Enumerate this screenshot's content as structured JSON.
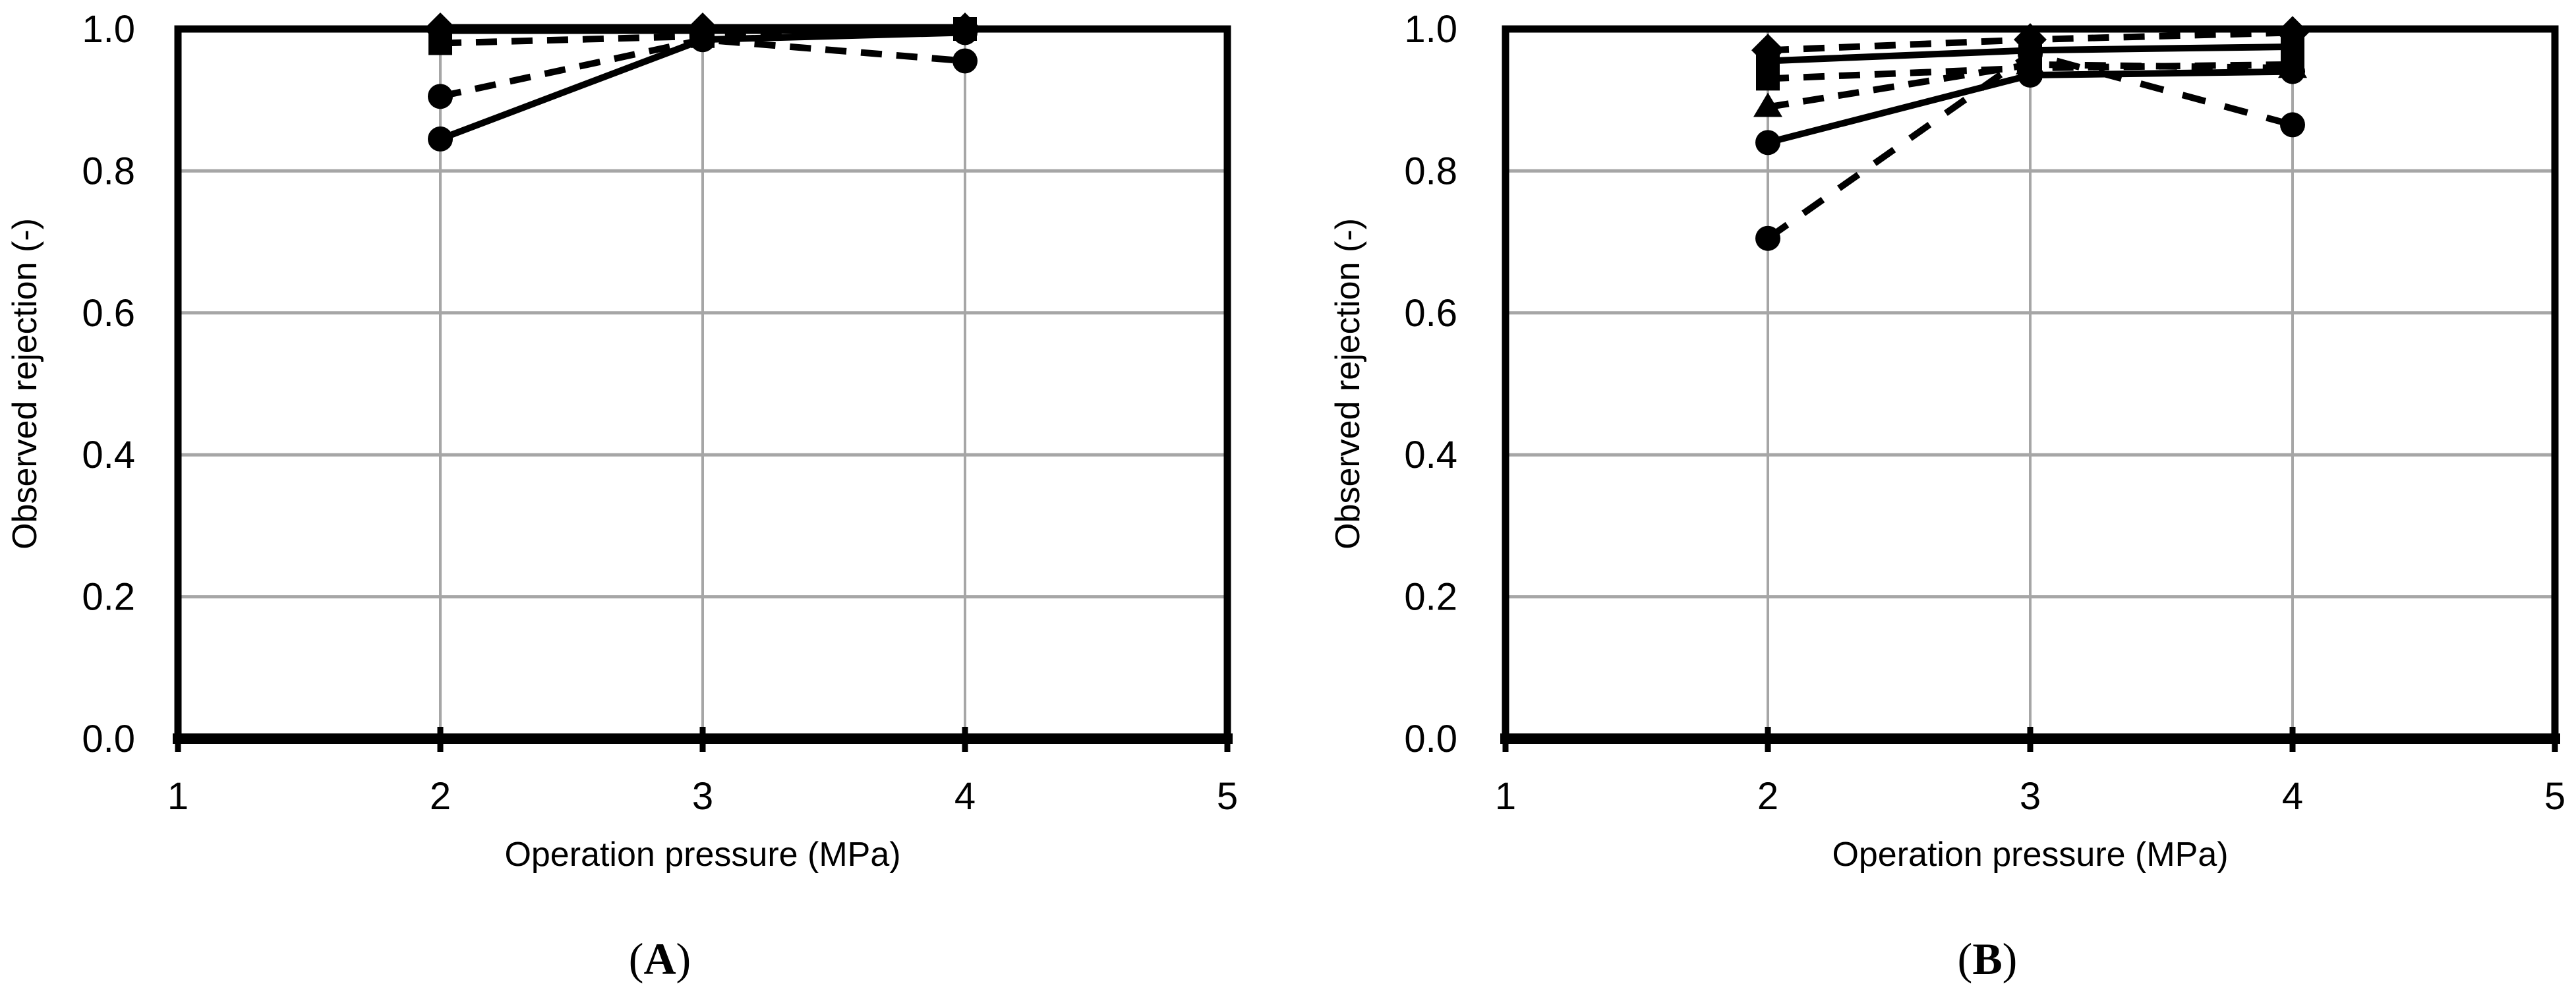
{
  "figure": {
    "title": "Observed rejection vs operation pressure (two panels)",
    "background": "#ffffff",
    "axis_color": "#000000",
    "grid_color": "#a6a6a6",
    "series_color": "#000000"
  },
  "chart_data": [
    {
      "type": "line",
      "panel": "A",
      "caption": "(A)",
      "xlabel": "Operation pressure (MPa)",
      "ylabel": "Observed rejection (-)",
      "x": [
        2,
        3,
        4
      ],
      "xlim": [
        1,
        5
      ],
      "ylim": [
        0.0,
        1.0
      ],
      "xticks": [
        1,
        2,
        3,
        4,
        5
      ],
      "yticks": [
        "0.0",
        "0.2",
        "0.4",
        "0.6",
        "0.8",
        "1.0"
      ],
      "grid": true,
      "legend": "none",
      "series": [
        {
          "name": "diamond-solid",
          "marker": "diamond",
          "line": "solid",
          "thick": true,
          "values": [
            1.0,
            1.0,
            1.0
          ]
        },
        {
          "name": "square-dashed",
          "marker": "square",
          "line": "dashed",
          "thick": false,
          "values": [
            0.98,
            0.99,
            1.0
          ]
        },
        {
          "name": "circle-dashed",
          "marker": "circle",
          "line": "dashed",
          "thick": false,
          "values": [
            0.905,
            0.985,
            0.955
          ]
        },
        {
          "name": "circle-solid",
          "marker": "circle",
          "line": "solid",
          "thick": false,
          "values": [
            0.845,
            0.985,
            0.995
          ]
        }
      ]
    },
    {
      "type": "line",
      "panel": "B",
      "caption": "(B)",
      "xlabel": "Operation pressure (MPa)",
      "ylabel": "Observed rejection (-)",
      "x": [
        2,
        3,
        4
      ],
      "xlim": [
        1,
        5
      ],
      "ylim": [
        0.0,
        1.0
      ],
      "xticks": [
        1,
        2,
        3,
        4,
        5
      ],
      "yticks": [
        "0.0",
        "0.2",
        "0.4",
        "0.6",
        "0.8",
        "1.0"
      ],
      "grid": true,
      "legend": "none",
      "series": [
        {
          "name": "diamond-dashed",
          "marker": "diamond",
          "line": "dashed",
          "thick": false,
          "values": [
            0.97,
            0.985,
            0.995
          ]
        },
        {
          "name": "square-solid",
          "marker": "square",
          "line": "solid",
          "thick": false,
          "values": [
            0.955,
            0.97,
            0.975
          ]
        },
        {
          "name": "square-dashed",
          "marker": "square",
          "line": "dashed",
          "thick": false,
          "values": [
            0.93,
            0.945,
            0.95
          ]
        },
        {
          "name": "triangle-dashed",
          "marker": "triangle",
          "line": "dashed",
          "thick": false,
          "values": [
            0.89,
            0.95,
            0.945
          ]
        },
        {
          "name": "circle-solid",
          "marker": "circle",
          "line": "solid",
          "thick": false,
          "values": [
            0.84,
            0.935,
            0.94
          ]
        },
        {
          "name": "circle-dashed-steep",
          "marker": "circle",
          "line": "dashed-long",
          "thick": false,
          "values": [
            0.705,
            0.965,
            0.865
          ]
        }
      ]
    }
  ]
}
